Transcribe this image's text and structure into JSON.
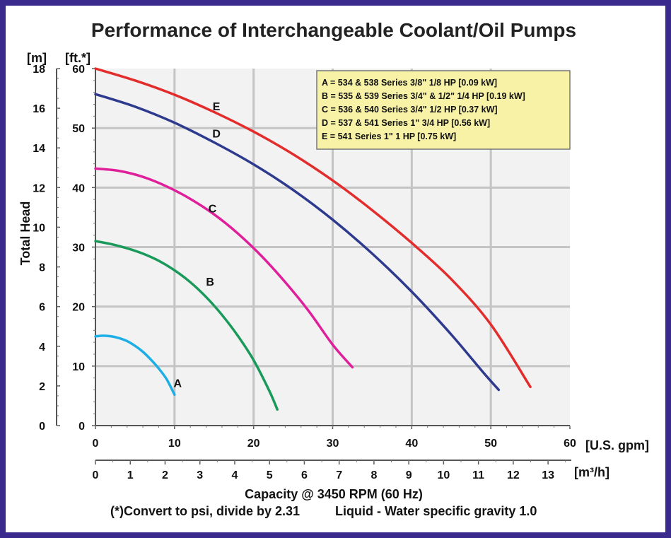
{
  "chart_data": {
    "type": "line",
    "title": "Performance of Interchangeable Coolant/Oil Pumps",
    "xlabel": "Capacity @ 3450 RPM (60 Hz)",
    "ylabel": "Total Head",
    "x_unit": "[U.S. gpm]",
    "x2_unit": "[m³/h]",
    "y_unit_m": "[m]",
    "y_unit_ft": "[ft.*]",
    "footnote_left": "(*)Convert to psi, divide by 2.31",
    "footnote_right": "Liquid - Water specific gravity 1.0",
    "xlim": [
      0,
      60
    ],
    "ylim_ft": [
      0,
      60
    ],
    "ylim_m": [
      0,
      18
    ],
    "x_ticks": [
      "0",
      "10",
      "20",
      "30",
      "40",
      "50",
      "60"
    ],
    "x2_ticks": [
      "0",
      "1",
      "2",
      "3",
      "4",
      "5",
      "6",
      "7",
      "8",
      "9",
      "10",
      "11",
      "12",
      "13"
    ],
    "y_ft_ticks": [
      "0",
      "10",
      "20",
      "30",
      "40",
      "50",
      "60"
    ],
    "y_m_ticks": [
      "0",
      "2",
      "4",
      "6",
      "8",
      "10",
      "12",
      "14",
      "16",
      "18"
    ],
    "grid": true,
    "legend": {
      "placement": "top-right",
      "entries": [
        "A = 534 & 538 Series 3/8\" 1/8 HP [0.09 kW]",
        "B = 535 & 539 Series 3/4\" & 1/2\" 1/4 HP [0.19 kW]",
        "C = 536 & 540 Series 3/4\" 1/2 HP [0.37 kW]",
        "D = 537 & 541 Series 1\" 3/4 HP [0.56 kW]",
        "E = 541 Series 1\" 1 HP [0.75 kW]"
      ]
    },
    "series": [
      {
        "name": "A",
        "color": "#1eaee6",
        "x": [
          0,
          1,
          2,
          3,
          4,
          5,
          6,
          7,
          8,
          9,
          10
        ],
        "y": [
          15,
          15.1,
          15.0,
          14.7,
          14.2,
          13.4,
          12.4,
          11.1,
          9.6,
          7.8,
          5.2
        ]
      },
      {
        "name": "B",
        "color": "#1a9a5a",
        "x": [
          0,
          2,
          4,
          6,
          8,
          10,
          12,
          14,
          16,
          18,
          20,
          22,
          23
        ],
        "y": [
          31,
          30.5,
          29.8,
          28.9,
          27.7,
          26.1,
          24.1,
          21.6,
          18.6,
          15.1,
          11.0,
          5.8,
          2.7
        ]
      },
      {
        "name": "C",
        "color": "#e01f9a",
        "x": [
          0,
          3,
          6,
          9,
          12,
          15,
          18,
          21,
          24,
          27,
          30,
          32.5
        ],
        "y": [
          43.2,
          42.8,
          41.8,
          40.2,
          38.1,
          35.5,
          32.3,
          28.5,
          24.1,
          19.2,
          13.6,
          9.8
        ]
      },
      {
        "name": "D",
        "color": "#2e3a8e",
        "x": [
          0,
          5,
          10,
          15,
          20,
          25,
          30,
          35,
          40,
          45,
          49,
          51
        ],
        "y": [
          55.7,
          53.6,
          50.9,
          47.6,
          43.9,
          39.6,
          34.6,
          28.9,
          22.5,
          15.3,
          9.0,
          6.0
        ]
      },
      {
        "name": "E",
        "color": "#e32c2c",
        "x": [
          0,
          5,
          10,
          15,
          20,
          25,
          30,
          35,
          40,
          45,
          50,
          55
        ],
        "y": [
          60,
          58.0,
          55.6,
          52.7,
          49.4,
          45.6,
          41.2,
          36.2,
          30.7,
          24.6,
          17.0,
          6.5
        ]
      }
    ]
  }
}
